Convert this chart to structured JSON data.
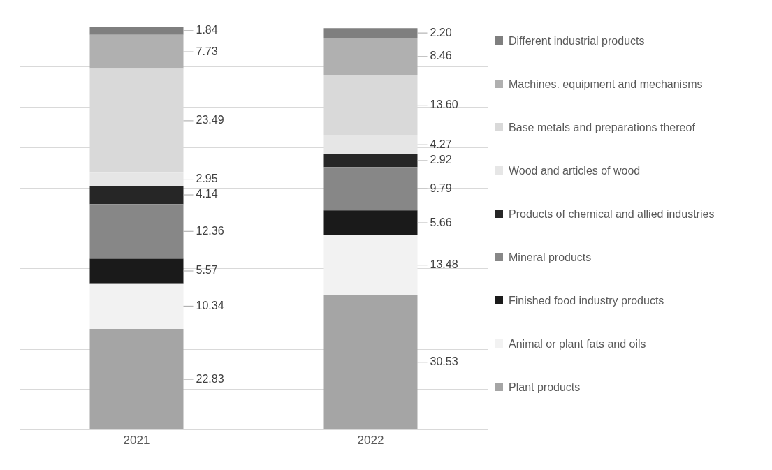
{
  "chart_data": {
    "type": "bar",
    "stacked": true,
    "categories": [
      "2021",
      "2022"
    ],
    "series": [
      {
        "name": "Plant products",
        "color": "#a5a5a5",
        "values": [
          22.83,
          30.53
        ],
        "value_labels": [
          "22.83",
          "30.53"
        ]
      },
      {
        "name": "Animal or plant fats and oils",
        "color": "#f2f2f2",
        "values": [
          10.34,
          13.48
        ],
        "value_labels": [
          "10.34",
          "13.48"
        ]
      },
      {
        "name": "Finished food industry products",
        "color": "#1a1a1a",
        "values": [
          5.57,
          5.66
        ],
        "value_labels": [
          "5.57",
          "5.66"
        ]
      },
      {
        "name": "Mineral products",
        "color": "#878787",
        "values": [
          12.36,
          9.79
        ],
        "value_labels": [
          "12.36",
          "9.79"
        ]
      },
      {
        "name": "Products of chemical and allied industries",
        "color": "#262626",
        "values": [
          4.14,
          2.92
        ],
        "value_labels": [
          "4.14",
          "2.92"
        ]
      },
      {
        "name": "Wood and articles of wood",
        "color": "#e6e6e6",
        "values": [
          2.95,
          4.27
        ],
        "value_labels": [
          "2.95",
          "4.27"
        ]
      },
      {
        "name": "Base metals and preparations thereof",
        "color": "#d9d9d9",
        "values": [
          23.49,
          13.6
        ],
        "value_labels": [
          "23.49",
          "13.60"
        ]
      },
      {
        "name": "Machines. equipment and mechanisms",
        "color": "#b0b0b0",
        "values": [
          7.73,
          8.46
        ],
        "value_labels": [
          "7.73",
          "8.46"
        ]
      },
      {
        "name": "Different industrial products",
        "color": "#7f7f7f",
        "values": [
          1.84,
          2.2
        ],
        "value_labels": [
          "1.84",
          "2.20"
        ]
      }
    ],
    "ylim": [
      0,
      91.25
    ],
    "yticks": [
      {
        "value": 0,
        "label": null
      },
      {
        "value": 9.125,
        "label": null
      },
      {
        "value": 18.25,
        "label": null
      },
      {
        "value": 27.375,
        "label": null
      },
      {
        "value": 36.5,
        "label": null
      },
      {
        "value": 45.625,
        "label": null
      },
      {
        "value": 54.75,
        "label": null
      },
      {
        "value": 63.875,
        "label": null
      },
      {
        "value": 73,
        "label": null
      },
      {
        "value": 82.125,
        "label": null
      },
      {
        "value": 91.25,
        "label": null
      }
    ],
    "tick_labels": "x",
    "grid": "y",
    "legend": "right"
  }
}
